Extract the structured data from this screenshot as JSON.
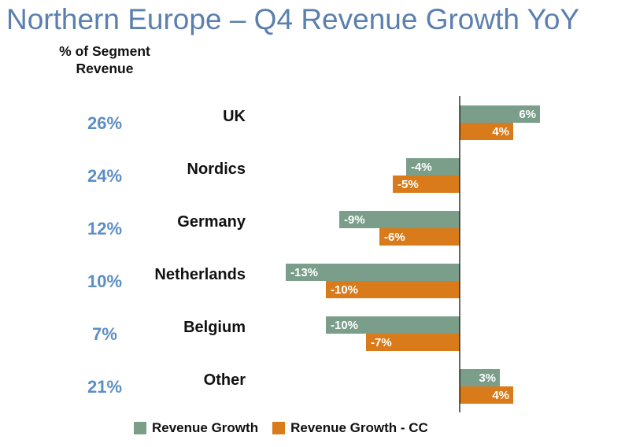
{
  "title": "Northern Europe – Q4 Revenue Growth YoY",
  "segment_header": "% of Segment Revenue",
  "colors": {
    "title": "#5b7fae",
    "share": "#5b8ec5",
    "revenue_growth": "#7a9e8a",
    "revenue_growth_cc": "#d97b1b",
    "axis": "#000000"
  },
  "legend": [
    "Revenue Growth",
    "Revenue Growth - CC"
  ],
  "chart_data": {
    "type": "bar",
    "orientation": "horizontal",
    "title": "Northern Europe – Q4 Revenue Growth YoY",
    "categories": [
      "UK",
      "Nordics",
      "Germany",
      "Netherlands",
      "Belgium",
      "Other"
    ],
    "segment_share": [
      "26%",
      "24%",
      "12%",
      "10%",
      "7%",
      "21%"
    ],
    "series": [
      {
        "name": "Revenue Growth",
        "values": [
          6,
          -4,
          -9,
          -13,
          -10,
          3
        ],
        "labels": [
          "6%",
          "-4%",
          "-9%",
          "-13%",
          "-10%",
          "3%"
        ]
      },
      {
        "name": "Revenue Growth - CC",
        "values": [
          4,
          -5,
          -6,
          -10,
          -7,
          4
        ],
        "labels": [
          "4%",
          "-5%",
          "-6%",
          "-10%",
          "-7%",
          "4%"
        ]
      }
    ],
    "xlim": [
      -13,
      6
    ],
    "grid": false,
    "legend_position": "bottom"
  }
}
